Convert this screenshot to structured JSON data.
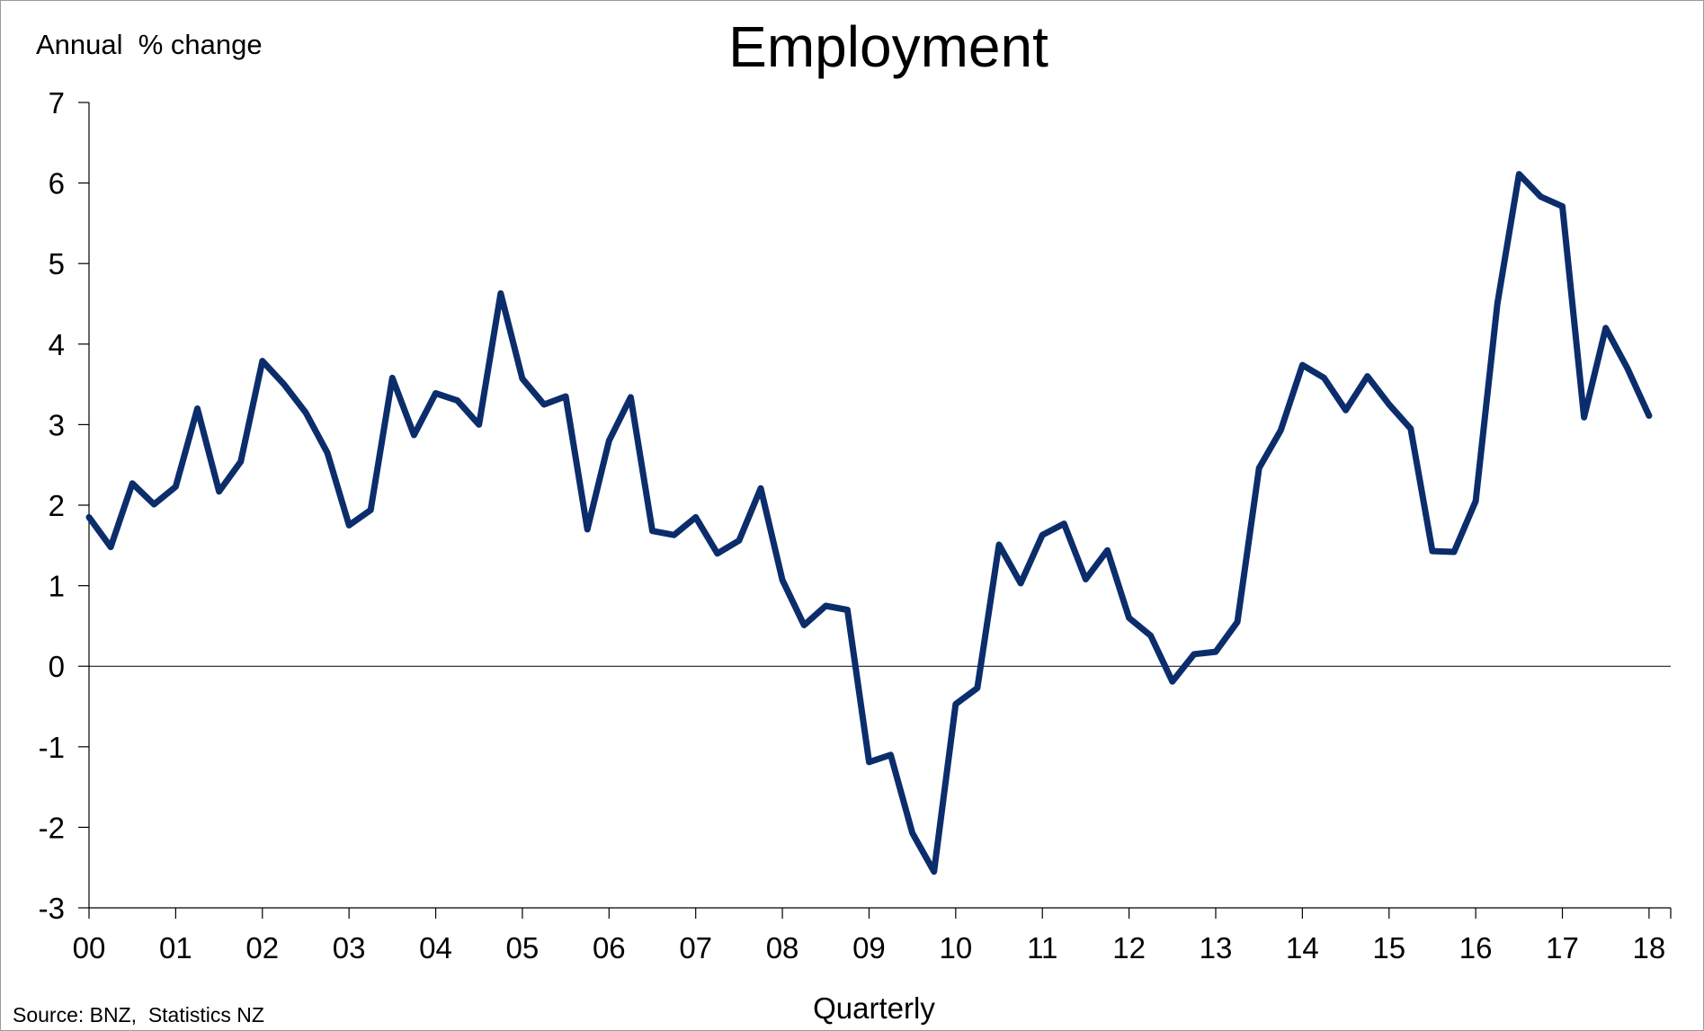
{
  "chart_data": {
    "type": "line",
    "title": "Employment",
    "ylabel": "Annual  % change",
    "xlabel": "Quarterly",
    "source": "Source: BNZ,  Statistics NZ",
    "ylim": [
      -3,
      7
    ],
    "xlim": [
      2000.0,
      2018.25
    ],
    "y_ticks": [
      7,
      6,
      5,
      4,
      3,
      2,
      1,
      0,
      -1,
      -2,
      -3
    ],
    "y_tick_labels": [
      "7",
      "6",
      "5",
      "4",
      "3",
      "2",
      "1",
      "0",
      "-1",
      "-2",
      "-3"
    ],
    "x_tick_labels": [
      "00",
      "01",
      "02",
      "03",
      "04",
      "05",
      "06",
      "07",
      "08",
      "09",
      "10",
      "11",
      "12",
      "13",
      "14",
      "15",
      "16",
      "17",
      "18"
    ],
    "grid": false,
    "zero_line": true,
    "line_color": "#0c2d6b",
    "series": [
      {
        "values": [
          1.85,
          1.48,
          2.27,
          2.01,
          2.23,
          3.2,
          2.17,
          2.54,
          3.79,
          3.5,
          3.15,
          2.65,
          1.75,
          1.94,
          3.58,
          2.87,
          3.39,
          3.3,
          3.0,
          4.63,
          3.57,
          3.25,
          3.35,
          1.7,
          2.8,
          3.34,
          1.68,
          1.63,
          1.85,
          1.4,
          1.56,
          2.21,
          1.07,
          0.51,
          0.75,
          0.7,
          -1.19,
          -1.1,
          -2.07,
          -2.55,
          -0.47,
          -0.27,
          1.51,
          1.03,
          1.63,
          1.77,
          1.08,
          1.44,
          0.6,
          0.38,
          -0.19,
          0.15,
          0.18,
          0.55,
          2.46,
          2.93,
          3.74,
          3.58,
          3.18,
          3.6,
          3.25,
          2.95,
          1.43,
          1.42,
          2.05,
          4.5,
          6.11,
          5.83,
          5.71,
          3.09,
          4.2,
          3.7,
          3.11
        ]
      }
    ]
  }
}
